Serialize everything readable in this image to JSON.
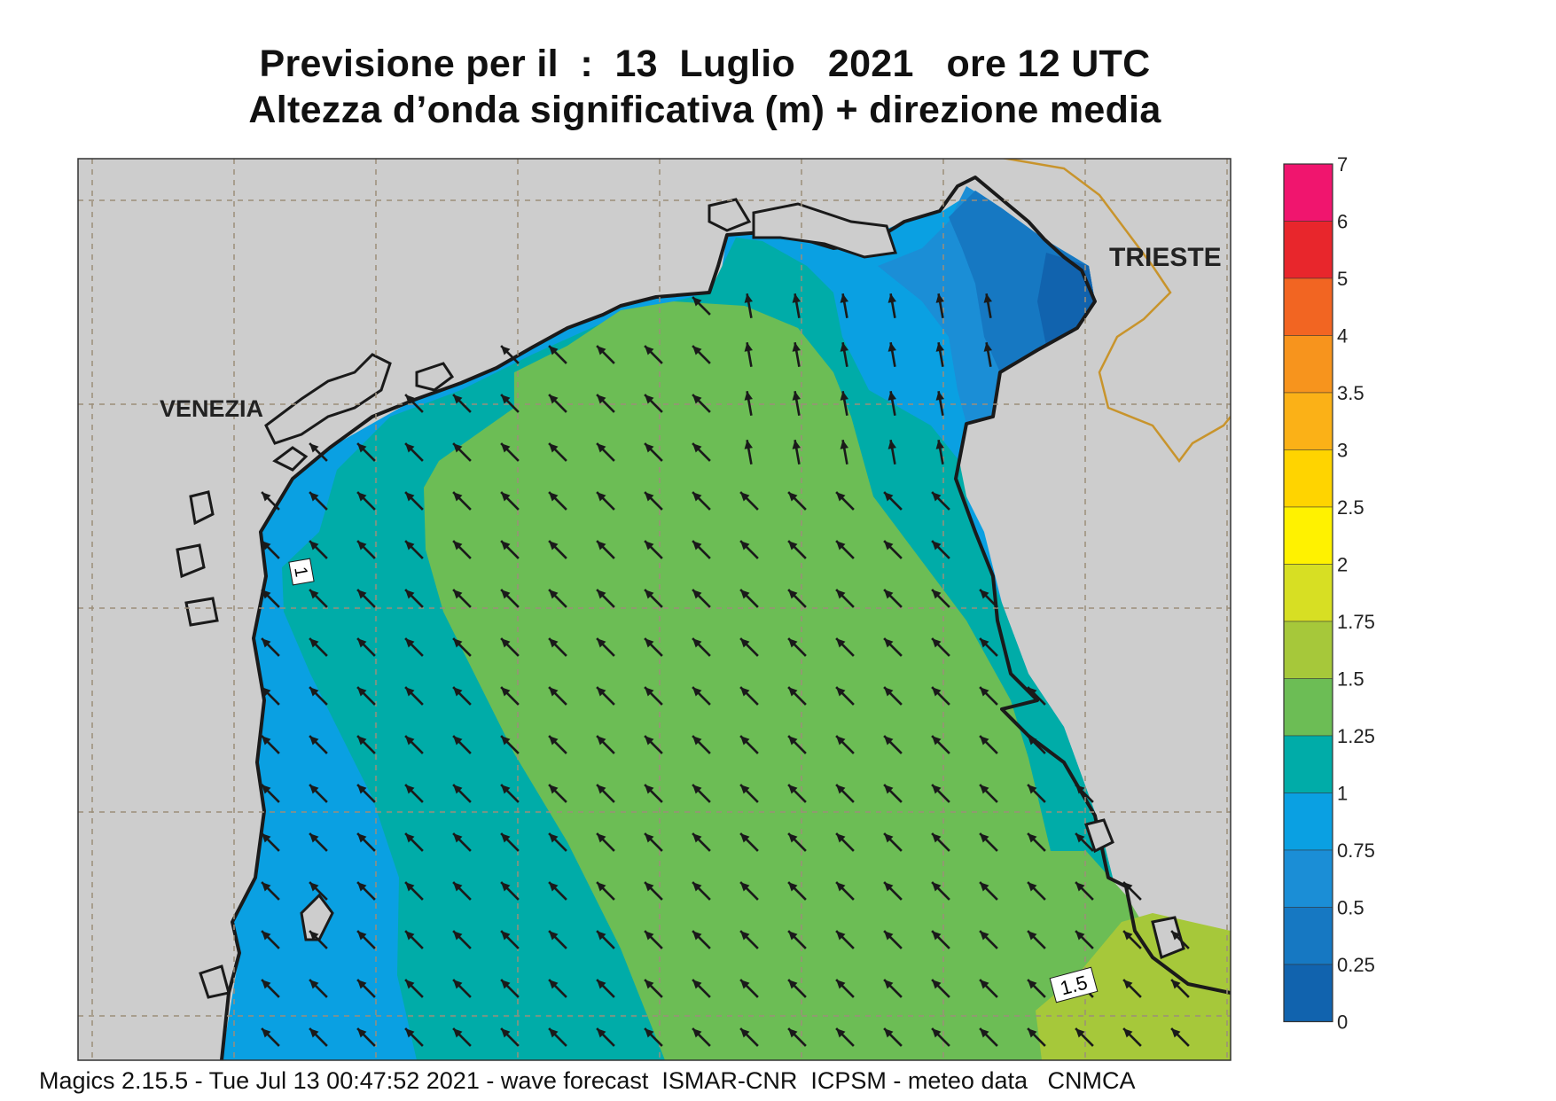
{
  "header": {
    "title_line1": "Previsione per il  :  13  Luglio   2021   ore 12 UTC",
    "title_line2": "Altezza d’onda significativa (m) + direzione media"
  },
  "map": {
    "city_labels": [
      "VENEZIA",
      "TRIESTE"
    ],
    "contour_labels": [
      "1",
      "1.5"
    ],
    "colors": {
      "land": "#cdcdcd",
      "coast": "#1a1a1a",
      "grid": "#9b8e7a",
      "border": "#c8942c",
      "arrow": "#1a1a1a"
    },
    "wave_direction": "NW"
  },
  "legend": {
    "bands": [
      {
        "label": "7",
        "color": "#f0156e"
      },
      {
        "label": "6",
        "color": "#e8262c"
      },
      {
        "label": "5",
        "color": "#f26522"
      },
      {
        "label": "4",
        "color": "#f7941d"
      },
      {
        "label": "3.5",
        "color": "#fbb117"
      },
      {
        "label": "3",
        "color": "#ffd400"
      },
      {
        "label": "2.5",
        "color": "#fff200"
      },
      {
        "label": "2",
        "color": "#d7df23"
      },
      {
        "label": "1.75",
        "color": "#a6c83a"
      },
      {
        "label": "1.5",
        "color": "#6cbd55"
      },
      {
        "label": "1.25",
        "color": "#00aca8"
      },
      {
        "label": "1",
        "color": "#0aa0e2"
      },
      {
        "label": "0.75",
        "color": "#1b8ed6"
      },
      {
        "label": "0.5",
        "color": "#1678c2"
      },
      {
        "label": "0.25",
        "color": "#1163ae"
      },
      {
        "label": "0",
        "color": ""
      }
    ]
  },
  "footer": {
    "text": "Magics 2.15.5 - Tue Jul 13 00:47:52 2021 - wave forecast  ISMAR-CNR  ICPSM - meteo data   CNMCA"
  }
}
